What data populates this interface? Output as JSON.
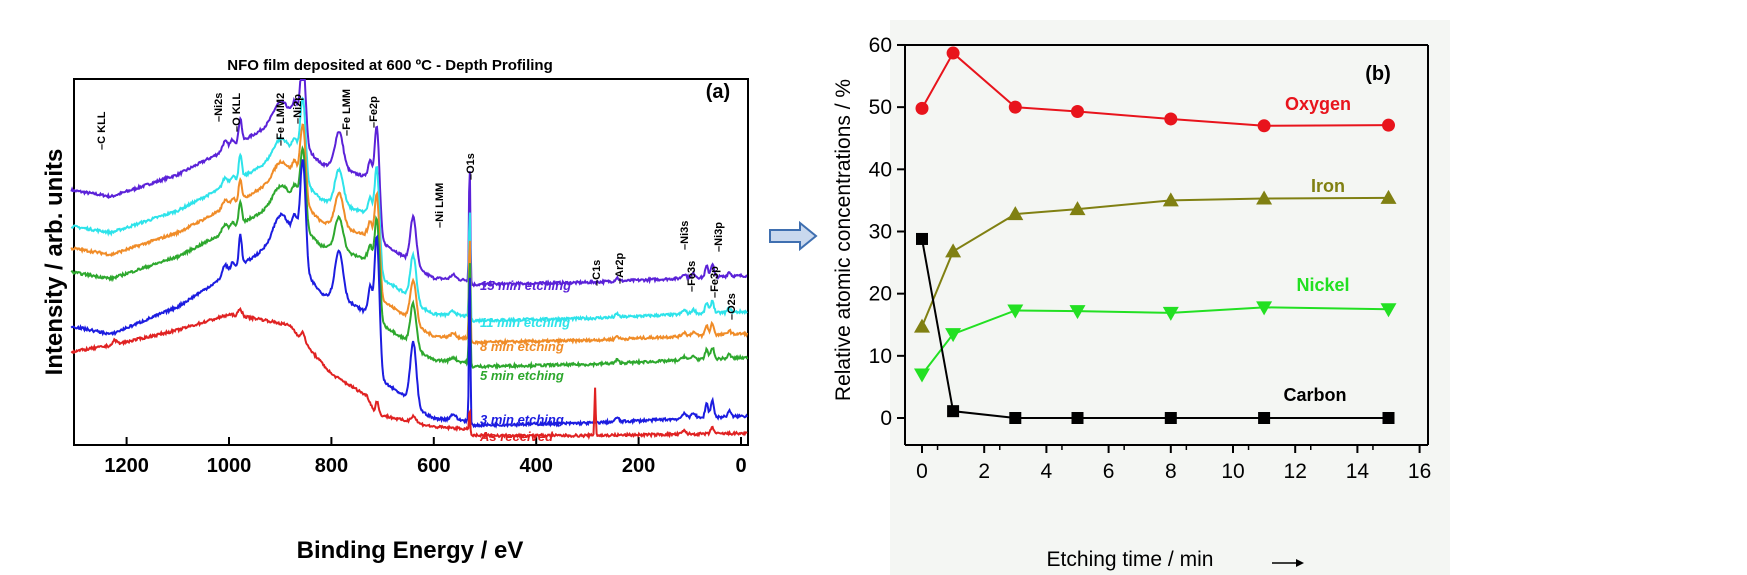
{
  "chart_data": [
    {
      "type": "line",
      "panel_label": "(a)",
      "title": "NFO film deposited at 600 ºC  - Depth Profiling",
      "xlabel": "Binding Energy / eV",
      "ylabel": "Intensity / arb. units",
      "xlim": [
        1310,
        -12
      ],
      "x_reversed": true,
      "x_ticks": [
        "1200",
        "1000",
        "800",
        "600",
        "400",
        "200",
        "0"
      ],
      "x_tick_values": [
        1200,
        1000,
        800,
        600,
        400,
        200,
        0
      ],
      "y_ticks": [],
      "series": [
        {
          "name": "15 min  etching",
          "color": "#5b22d8"
        },
        {
          "name": "11 min  etching",
          "color": "#2ee3ea"
        },
        {
          "name": "8 min  etching",
          "color": "#f08c28"
        },
        {
          "name": "5 min  etching",
          "color": "#2ea82e"
        },
        {
          "name": "3 min  etching",
          "color": "#1c1ce0"
        },
        {
          "name": "As received",
          "color": "#e02222"
        }
      ],
      "peak_labels": [
        {
          "label": "C KLL",
          "energy": 1223
        },
        {
          "label": "Ni2s",
          "energy": 1008
        },
        {
          "label": "O KLL",
          "energy": 978
        },
        {
          "label": "Fe LMM2",
          "energy": 900
        },
        {
          "label": "Ni2p",
          "energy": 855
        },
        {
          "label": "Fe LMM",
          "energy": 785
        },
        {
          "label": "Fe2p",
          "energy": 711
        },
        {
          "label": "Ni LMM",
          "energy": 640
        },
        {
          "label": "O1s",
          "energy": 530
        },
        {
          "label": "C1s",
          "energy": 285
        },
        {
          "label": "Ar2p",
          "energy": 242
        },
        {
          "label": "Ni3s",
          "energy": 111
        },
        {
          "label": "Fe3s",
          "energy": 93
        },
        {
          "label": "Fe3p",
          "energy": 56
        },
        {
          "label": "Ni3p",
          "energy": 67
        },
        {
          "label": "O2s",
          "energy": 23
        }
      ],
      "grid": false,
      "legend": "inline labels"
    },
    {
      "type": "line",
      "panel_label": "(b)",
      "xlabel": "Etching time / min",
      "ylabel": "Relative atomic concentrations / %",
      "xlim": [
        -0.55,
        16.1
      ],
      "ylim": [
        -4.3,
        60
      ],
      "x_ticks": [
        "0",
        "2",
        "4",
        "6",
        "8",
        "10",
        "12",
        "14",
        "16"
      ],
      "y_ticks": [
        "0",
        "10",
        "20",
        "30",
        "40",
        "50",
        "60"
      ],
      "x": [
        0,
        1,
        3,
        5,
        8,
        11,
        15
      ],
      "series": [
        {
          "name": "Oxygen",
          "color": "#e8141c",
          "marker": "circle",
          "values": [
            49.8,
            58.7,
            50.0,
            49.3,
            48.1,
            47.0,
            47.1
          ]
        },
        {
          "name": "Iron",
          "color": "#808012",
          "marker": "triangle-up",
          "values": [
            14.7,
            26.8,
            32.8,
            33.6,
            35.0,
            35.3,
            35.4
          ]
        },
        {
          "name": "Nickel",
          "color": "#22e022",
          "marker": "triangle-down",
          "values": [
            7.0,
            13.5,
            17.3,
            17.2,
            16.9,
            17.8,
            17.5
          ]
        },
        {
          "name": "Carbon",
          "color": "#000000",
          "marker": "square",
          "values": [
            28.8,
            1.1,
            0.0,
            0.0,
            0.0,
            0.0,
            0.0
          ]
        }
      ],
      "background": "#f4f6f3",
      "grid": false,
      "legend": "inline labels right"
    }
  ],
  "connector": {
    "icon": "right-arrow-icon",
    "color": "#3f6fb0"
  }
}
